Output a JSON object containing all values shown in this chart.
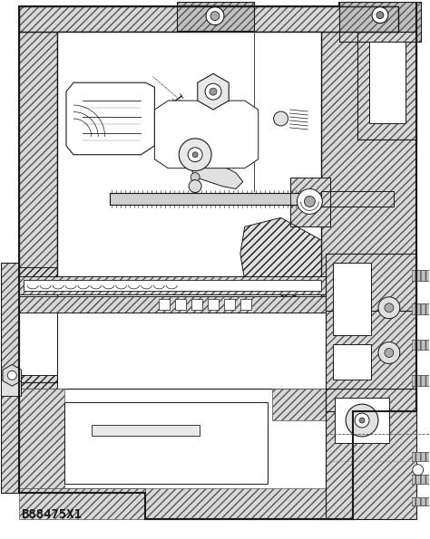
{
  "label": "B88475X1",
  "label_fontsize": 10,
  "background_color": "#ffffff",
  "line_color": "#1a1a1a",
  "fig_width": 4.74,
  "fig_height": 5.95,
  "dpi": 100,
  "hatch_fc": "#d8d8d8",
  "hatch_fc2": "#c0c0c0"
}
